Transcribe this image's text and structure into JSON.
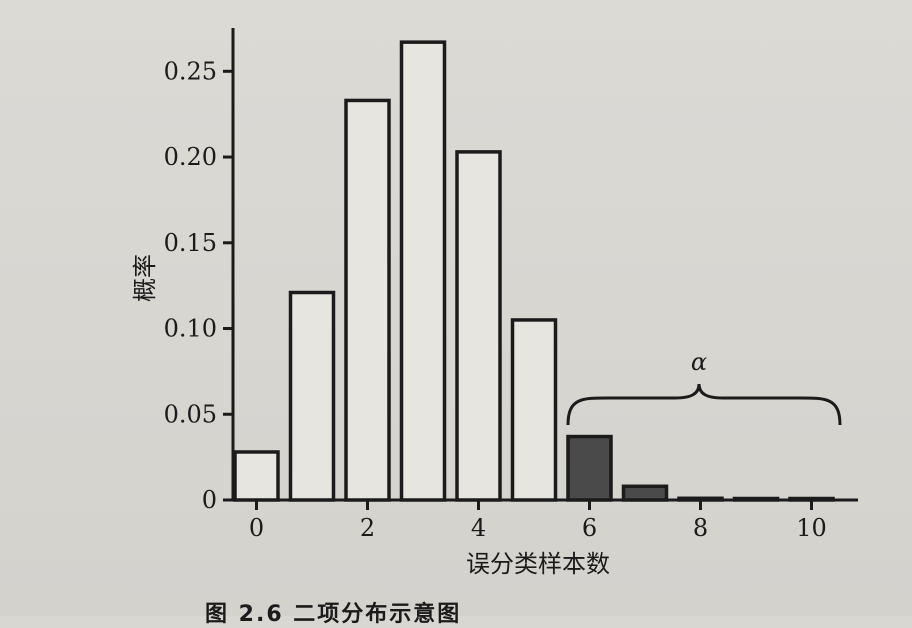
{
  "chart_data": {
    "type": "bar",
    "categories": [
      "0",
      "1",
      "2",
      "3",
      "4",
      "5",
      "6",
      "7",
      "8",
      "9",
      "10"
    ],
    "values": [
      0.028,
      0.121,
      0.233,
      0.267,
      0.203,
      0.105,
      0.037,
      0.008,
      0.001,
      0.0003,
      0.0001
    ],
    "highlighted_categories": [
      "6",
      "7",
      "8",
      "9",
      "10"
    ],
    "xlabel": "误分类样本数",
    "ylabel": "概率",
    "xticks": [
      "0",
      "2",
      "4",
      "6",
      "8",
      "10"
    ],
    "yticks": [
      "0",
      "0.05",
      "0.10",
      "0.15",
      "0.20",
      "0.25"
    ],
    "ylim": [
      0,
      0.27
    ],
    "annotation": "α",
    "grid": false,
    "colors": {
      "bar_fill": "#e7e5e0",
      "highlight_fill": "#4a4a4a",
      "edge": "#1b1b1b"
    }
  },
  "caption": "图 2.6   二项分布示意图"
}
